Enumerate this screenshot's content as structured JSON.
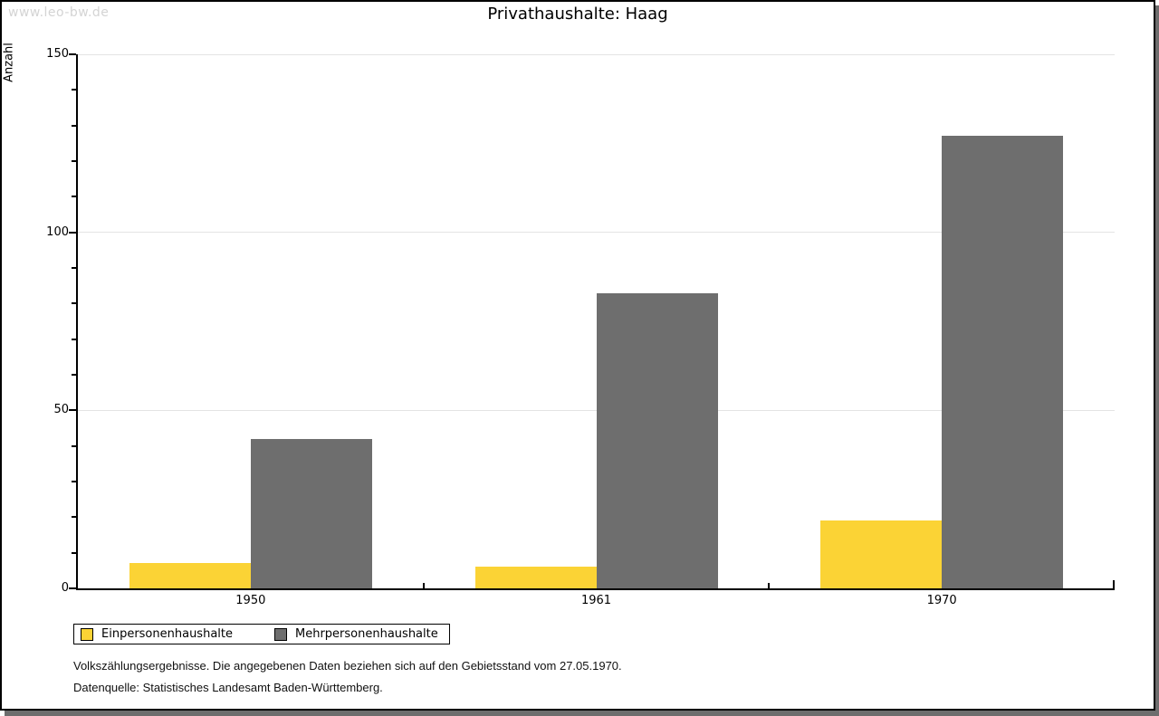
{
  "watermark": {
    "text": "www.leo-bw.de"
  },
  "chart_data": {
    "type": "bar",
    "title": "Privathaushalte: Haag",
    "xlabel": "",
    "ylabel": "Anzahl",
    "categories": [
      "1950",
      "1961",
      "1970"
    ],
    "series": [
      {
        "name": "Einpersonenhaushalte",
        "color": "#FBD335",
        "values": [
          7,
          6,
          19
        ]
      },
      {
        "name": "Mehrpersonenhaushalte",
        "color": "#6E6E6E",
        "values": [
          42,
          83,
          127
        ]
      }
    ],
    "ylim": [
      0,
      150
    ],
    "yticks_major": [
      0,
      50,
      100,
      150
    ],
    "ytick_minor_step": 10,
    "grid": true,
    "legend_position": "bottom-left"
  },
  "footer": {
    "line1": "Volkszählungsergebnisse. Die angegebenen Daten beziehen sich auf den Gebietsstand vom 27.05.1970.",
    "line2": "Datenquelle: Statistisches Landesamt Baden-Württemberg."
  }
}
